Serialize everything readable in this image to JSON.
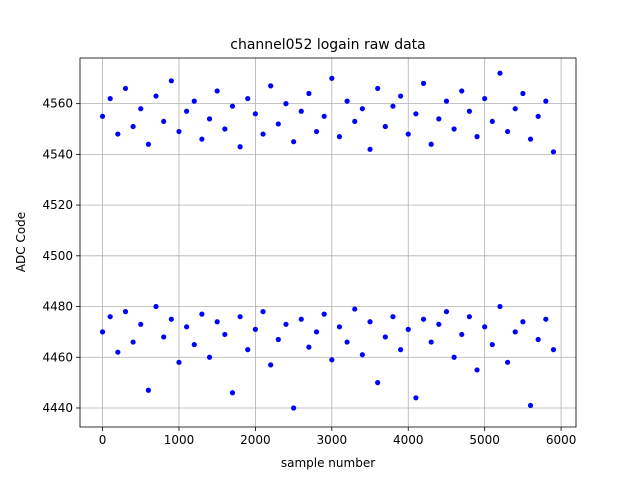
{
  "chart_data": {
    "type": "scatter",
    "title": "channel052 logain raw data",
    "xlabel": "sample number",
    "ylabel": "ADC Code",
    "color": "#0000ff",
    "grid": true,
    "xlim": [
      -295,
      6195
    ],
    "ylim": [
      4432.5,
      4578
    ],
    "xticks": [
      0,
      1000,
      2000,
      3000,
      4000,
      5000,
      6000
    ],
    "yticks": [
      4440,
      4460,
      4480,
      4500,
      4520,
      4540,
      4560
    ],
    "x": [
      0,
      100,
      200,
      300,
      400,
      500,
      600,
      700,
      800,
      900,
      1000,
      1100,
      1200,
      1300,
      1400,
      1500,
      1600,
      1700,
      1800,
      1900,
      2000,
      2100,
      2200,
      2300,
      2400,
      2500,
      2600,
      2700,
      2800,
      2900,
      3000,
      3100,
      3200,
      3300,
      3400,
      3500,
      3600,
      3700,
      3800,
      3900,
      4000,
      4100,
      4200,
      4300,
      4400,
      4500,
      4600,
      4700,
      4800,
      4900,
      5000,
      5100,
      5200,
      5300,
      5400,
      5500,
      5600,
      5700,
      5800,
      5900,
      0,
      100,
      200,
      300,
      400,
      500,
      600,
      700,
      800,
      900,
      1000,
      1100,
      1200,
      1300,
      1400,
      1500,
      1600,
      1700,
      1800,
      1900,
      2000,
      2100,
      2200,
      2300,
      2400,
      2500,
      2600,
      2700,
      2800,
      2900,
      3000,
      3100,
      3200,
      3300,
      3400,
      3500,
      3600,
      3700,
      3800,
      3900,
      4000,
      4100,
      4200,
      4300,
      4400,
      4500,
      4600,
      4700,
      4800,
      4900,
      5000,
      5100,
      5200,
      5300,
      5400,
      5500,
      5600,
      5700,
      5800,
      5900
    ],
    "values": [
      4555,
      4562,
      4548,
      4566,
      4551,
      4558,
      4544,
      4563,
      4553,
      4569,
      4549,
      4557,
      4561,
      4546,
      4554,
      4565,
      4550,
      4559,
      4543,
      4562,
      4556,
      4548,
      4567,
      4552,
      4560,
      4545,
      4557,
      4564,
      4549,
      4555,
      4570,
      4547,
      4561,
      4553,
      4558,
      4542,
      4566,
      4551,
      4559,
      4563,
      4548,
      4556,
      4568,
      4544,
      4554,
      4561,
      4550,
      4565,
      4557,
      4547,
      4562,
      4553,
      4572,
      4549,
      4558,
      4564,
      4546,
      4555,
      4561,
      4541,
      4470,
      4476,
      4462,
      4478,
      4466,
      4473,
      4447,
      4480,
      4468,
      4475,
      4458,
      4472,
      4465,
      4477,
      4460,
      4474,
      4469,
      4446,
      4476,
      4463,
      4471,
      4478,
      4457,
      4467,
      4473,
      4440,
      4475,
      4464,
      4470,
      4477,
      4459,
      4472,
      4466,
      4479,
      4461,
      4474,
      4450,
      4468,
      4476,
      4463,
      4471,
      4444,
      4475,
      4466,
      4473,
      4478,
      4460,
      4469,
      4476,
      4455,
      4472,
      4465,
      4480,
      4458,
      4470,
      4474,
      4441,
      4467,
      4475,
      4463
    ]
  }
}
